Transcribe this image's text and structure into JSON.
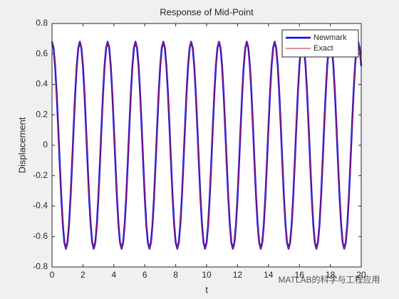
{
  "chart_data": {
    "type": "line",
    "title": "Response of Mid-Point",
    "x_label": "t",
    "y_label": "Displacement",
    "watermark": "MATLAB的科学与工程应用",
    "xlim": [
      0,
      20
    ],
    "xticks": [
      0,
      2,
      4,
      6,
      8,
      10,
      12,
      14,
      16,
      18,
      20
    ],
    "ylim": [
      -0.8,
      0.8
    ],
    "yticks": [
      -0.8,
      -0.6,
      -0.4,
      -0.2,
      0,
      0.2,
      0.4,
      0.6,
      0.8
    ],
    "grid": false,
    "legend": "top-right",
    "x": [
      0,
      0.1,
      0.2,
      0.3,
      0.4,
      0.5,
      0.6,
      0.7,
      0.8,
      0.9,
      1,
      1.1,
      1.2,
      1.3,
      1.4,
      1.5,
      1.6,
      1.7,
      1.8,
      1.9,
      2,
      2.1,
      2.2,
      2.3,
      2.4,
      2.5,
      2.6,
      2.7,
      2.8,
      2.9,
      3,
      3.1,
      3.2,
      3.3,
      3.4,
      3.5,
      3.6,
      3.7,
      3.8,
      3.9,
      4,
      4.1,
      4.2,
      4.3,
      4.4,
      4.5,
      4.6,
      4.7,
      4.8,
      4.9,
      5,
      5.1,
      5.2,
      5.3,
      5.4,
      5.5,
      5.6,
      5.7,
      5.8,
      5.9,
      6,
      6.1,
      6.2,
      6.3,
      6.4,
      6.5,
      6.6,
      6.7,
      6.8,
      6.9,
      7,
      7.1,
      7.2,
      7.3,
      7.4,
      7.5,
      7.6,
      7.7,
      7.8,
      7.9,
      8,
      8.1,
      8.2,
      8.3,
      8.4,
      8.5,
      8.6,
      8.7,
      8.8,
      8.9,
      9,
      9.1,
      9.2,
      9.3,
      9.4,
      9.5,
      9.6,
      9.7,
      9.8,
      9.9,
      10,
      10.1,
      10.2,
      10.3,
      10.4,
      10.5,
      10.6,
      10.7,
      10.8,
      10.9,
      11,
      11.1,
      11.2,
      11.3,
      11.4,
      11.5,
      11.6,
      11.7,
      11.8,
      11.9,
      12,
      12.1,
      12.2,
      12.3,
      12.4,
      12.5,
      12.6,
      12.7,
      12.8,
      12.9,
      13,
      13.1,
      13.2,
      13.3,
      13.4,
      13.5,
      13.6,
      13.7,
      13.8,
      13.9,
      14,
      14.1,
      14.2,
      14.3,
      14.4,
      14.5,
      14.6,
      14.7,
      14.8,
      14.9,
      15,
      15.1,
      15.2,
      15.3,
      15.4,
      15.5,
      15.6,
      15.7,
      15.8,
      15.9,
      16,
      16.1,
      16.2,
      16.3,
      16.4,
      16.5,
      16.6,
      16.7,
      16.8,
      16.9,
      17,
      17.1,
      17.2,
      17.3,
      17.4,
      17.5,
      17.6,
      17.7,
      17.8,
      17.9,
      18,
      18.1,
      18.2,
      18.3,
      18.4,
      18.5,
      18.6,
      18.7,
      18.8,
      18.9,
      19,
      19.1,
      19.2,
      19.3,
      19.4,
      19.5,
      19.6,
      19.7,
      19.8,
      19.9,
      20
    ],
    "series": [
      {
        "name": "Newmark",
        "color": "#0000ff",
        "width": 2.5,
        "values": [
          0.68,
          0.639,
          0.521,
          0.34,
          0.118,
          -0.118,
          -0.34,
          -0.521,
          -0.639,
          -0.68,
          -0.639,
          -0.521,
          -0.34,
          -0.118,
          0.118,
          0.34,
          0.521,
          0.639,
          0.68,
          0.639,
          0.521,
          0.34,
          0.118,
          -0.118,
          -0.34,
          -0.521,
          -0.639,
          -0.68,
          -0.639,
          -0.521,
          -0.34,
          -0.118,
          0.118,
          0.34,
          0.521,
          0.639,
          0.68,
          0.639,
          0.521,
          0.34,
          0.118,
          -0.118,
          -0.34,
          -0.521,
          -0.639,
          -0.68,
          -0.639,
          -0.521,
          -0.34,
          -0.118,
          0.118,
          0.34,
          0.521,
          0.639,
          0.68,
          0.639,
          0.521,
          0.34,
          0.118,
          -0.118,
          -0.34,
          -0.521,
          -0.639,
          -0.68,
          -0.639,
          -0.521,
          -0.34,
          -0.118,
          0.118,
          0.34,
          0.521,
          0.639,
          0.68,
          0.639,
          0.521,
          0.34,
          0.118,
          -0.118,
          -0.34,
          -0.521,
          -0.639,
          -0.68,
          -0.639,
          -0.521,
          -0.34,
          -0.118,
          0.118,
          0.34,
          0.521,
          0.639,
          0.68,
          0.639,
          0.521,
          0.34,
          0.118,
          -0.118,
          -0.34,
          -0.521,
          -0.639,
          -0.68,
          -0.639,
          -0.521,
          -0.34,
          -0.118,
          0.118,
          0.34,
          0.521,
          0.639,
          0.68,
          0.639,
          0.521,
          0.34,
          0.118,
          -0.118,
          -0.34,
          -0.521,
          -0.639,
          -0.68,
          -0.639,
          -0.521,
          -0.34,
          -0.118,
          0.118,
          0.34,
          0.521,
          0.639,
          0.68,
          0.639,
          0.521,
          0.34,
          0.118,
          -0.118,
          -0.34,
          -0.521,
          -0.639,
          -0.68,
          -0.639,
          -0.521,
          -0.34,
          -0.118,
          0.118,
          0.34,
          0.521,
          0.639,
          0.68,
          0.639,
          0.521,
          0.34,
          0.118,
          -0.118,
          -0.34,
          -0.521,
          -0.639,
          -0.68,
          -0.639,
          -0.521,
          -0.34,
          -0.118,
          0.118,
          0.34,
          0.521,
          0.639,
          0.68,
          0.639,
          0.521,
          0.34,
          0.118,
          -0.118,
          -0.34,
          -0.521,
          -0.639,
          -0.68,
          -0.639,
          -0.521,
          -0.34,
          -0.118,
          0.118,
          0.34,
          0.521,
          0.639,
          0.68,
          0.639,
          0.521,
          0.34,
          0.118,
          -0.118,
          -0.34,
          -0.521,
          -0.639,
          -0.68,
          -0.639,
          -0.521,
          -0.34,
          -0.118,
          0.118,
          0.34,
          0.521,
          0.639,
          0.68,
          0.639,
          0.521
        ]
      },
      {
        "name": "Exact",
        "color": "#c0242c",
        "width": 1,
        "values": [
          0.68,
          0.639,
          0.521,
          0.34,
          0.118,
          -0.118,
          -0.34,
          -0.521,
          -0.639,
          -0.68,
          -0.639,
          -0.521,
          -0.34,
          -0.118,
          0.118,
          0.34,
          0.521,
          0.639,
          0.68,
          0.639,
          0.521,
          0.34,
          0.118,
          -0.118,
          -0.34,
          -0.521,
          -0.639,
          -0.68,
          -0.639,
          -0.521,
          -0.34,
          -0.118,
          0.118,
          0.34,
          0.521,
          0.639,
          0.68,
          0.639,
          0.521,
          0.34,
          0.118,
          -0.118,
          -0.34,
          -0.521,
          -0.639,
          -0.68,
          -0.639,
          -0.521,
          -0.34,
          -0.118,
          0.118,
          0.34,
          0.521,
          0.639,
          0.68,
          0.639,
          0.521,
          0.34,
          0.118,
          -0.118,
          -0.34,
          -0.521,
          -0.639,
          -0.68,
          -0.639,
          -0.521,
          -0.34,
          -0.118,
          0.118,
          0.34,
          0.521,
          0.639,
          0.68,
          0.639,
          0.521,
          0.34,
          0.118,
          -0.118,
          -0.34,
          -0.521,
          -0.639,
          -0.68,
          -0.639,
          -0.521,
          -0.34,
          -0.118,
          0.118,
          0.34,
          0.521,
          0.639,
          0.68,
          0.639,
          0.521,
          0.34,
          0.118,
          -0.118,
          -0.34,
          -0.521,
          -0.639,
          -0.68,
          -0.639,
          -0.521,
          -0.34,
          -0.118,
          0.118,
          0.34,
          0.521,
          0.639,
          0.68,
          0.639,
          0.521,
          0.34,
          0.118,
          -0.118,
          -0.34,
          -0.521,
          -0.639,
          -0.68,
          -0.639,
          -0.521,
          -0.34,
          -0.118,
          0.118,
          0.34,
          0.521,
          0.639,
          0.68,
          0.639,
          0.521,
          0.34,
          0.118,
          -0.118,
          -0.34,
          -0.521,
          -0.639,
          -0.68,
          -0.639,
          -0.521,
          -0.34,
          -0.118,
          0.118,
          0.34,
          0.521,
          0.639,
          0.68,
          0.639,
          0.521,
          0.34,
          0.118,
          -0.118,
          -0.34,
          -0.521,
          -0.639,
          -0.68,
          -0.639,
          -0.521,
          -0.34,
          -0.118,
          0.118,
          0.34,
          0.521,
          0.639,
          0.68,
          0.639,
          0.521,
          0.34,
          0.118,
          -0.118,
          -0.34,
          -0.521,
          -0.639,
          -0.68,
          -0.639,
          -0.521,
          -0.34,
          -0.118,
          0.118,
          0.34,
          0.521,
          0.639,
          0.68,
          0.639,
          0.521,
          0.34,
          0.118,
          -0.118,
          -0.34,
          -0.521,
          -0.639,
          -0.68,
          -0.639,
          -0.521,
          -0.34,
          -0.118,
          0.118,
          0.34,
          0.521,
          0.639,
          0.68,
          0.639,
          0.521
        ]
      }
    ]
  }
}
